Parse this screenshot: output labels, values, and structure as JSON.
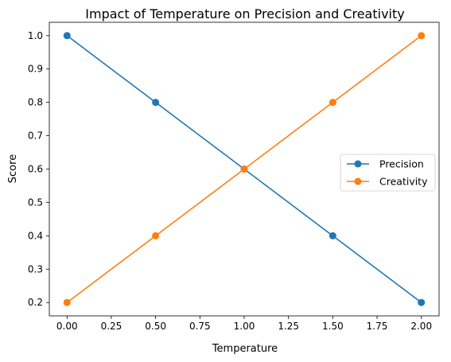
{
  "chart_data": {
    "type": "line",
    "title": "Impact of Temperature on Precision and Creativity",
    "xlabel": "Temperature",
    "ylabel": "Score",
    "x": [
      0.0,
      0.5,
      1.0,
      1.5,
      2.0
    ],
    "xlim": [
      -0.1,
      2.1
    ],
    "ylim": [
      0.16,
      1.04
    ],
    "xticks": [
      "0.00",
      "0.25",
      "0.50",
      "0.75",
      "1.00",
      "1.25",
      "1.50",
      "1.75",
      "2.00"
    ],
    "yticks": [
      "0.2",
      "0.3",
      "0.4",
      "0.5",
      "0.6",
      "0.7",
      "0.8",
      "0.9",
      "1.0"
    ],
    "grid": false,
    "legend_position": "center-right",
    "series": [
      {
        "name": "Precision",
        "values": [
          1.0,
          0.8,
          0.6,
          0.4,
          0.2
        ],
        "color": "#1f77b4",
        "marker": "circle"
      },
      {
        "name": "Creativity",
        "values": [
          0.2,
          0.4,
          0.6,
          0.8,
          1.0
        ],
        "color": "#ff7f0e",
        "marker": "circle"
      }
    ]
  }
}
